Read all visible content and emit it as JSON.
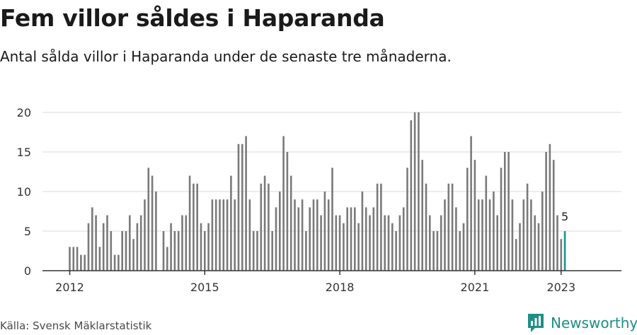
{
  "title": "Fem villor såldes i Haparanda",
  "subtitle": "Antal sålda villor i Haparanda under de senaste tre månaderna.",
  "source": "Källa: Svensk Mäklarstatistik",
  "brand": "Newsworthy",
  "colors": {
    "bar": "#7a7a7a",
    "highlight": "#1d9a93",
    "grid": "#e0e0e0",
    "axis": "#333333",
    "brand": "#1d8f86"
  },
  "chart_data": {
    "type": "bar",
    "title": "Fem villor såldes i Haparanda",
    "xlabel": "",
    "ylabel": "",
    "ylim": [
      0,
      20
    ],
    "yticks": [
      0,
      5,
      10,
      15,
      20
    ],
    "xticks": [
      {
        "label": "2012",
        "index": 0
      },
      {
        "label": "2015",
        "index": 36
      },
      {
        "label": "2018",
        "index": 72
      },
      {
        "label": "2021",
        "index": 108
      },
      {
        "label": "2023",
        "index": 131
      }
    ],
    "start": "2012-01",
    "values": [
      3,
      3,
      3,
      2,
      2,
      6,
      8,
      7,
      3,
      6,
      7,
      5,
      2,
      2,
      5,
      5,
      7,
      4,
      6,
      7,
      9,
      13,
      12,
      10,
      null,
      5,
      3,
      6,
      5,
      5,
      7,
      7,
      12,
      11,
      11,
      6,
      5,
      6,
      9,
      9,
      9,
      9,
      9,
      12,
      9,
      16,
      16,
      17,
      9,
      5,
      5,
      11,
      12,
      11,
      5,
      8,
      10,
      17,
      15,
      12,
      9,
      8,
      9,
      5,
      8,
      9,
      9,
      7,
      10,
      9,
      13,
      7,
      7,
      6,
      8,
      8,
      8,
      6,
      10,
      8,
      7,
      8,
      11,
      11,
      7,
      7,
      6,
      5,
      7,
      8,
      13,
      19,
      20,
      20,
      14,
      11,
      7,
      5,
      5,
      7,
      9,
      11,
      11,
      8,
      5,
      6,
      13,
      17,
      14,
      9,
      9,
      12,
      9,
      10,
      7,
      13,
      15,
      15,
      9,
      4,
      6,
      9,
      11,
      9,
      7,
      6,
      10,
      15,
      16,
      14,
      7,
      4,
      5
    ],
    "highlight": {
      "index": 132,
      "value": 5,
      "label": "5"
    }
  }
}
